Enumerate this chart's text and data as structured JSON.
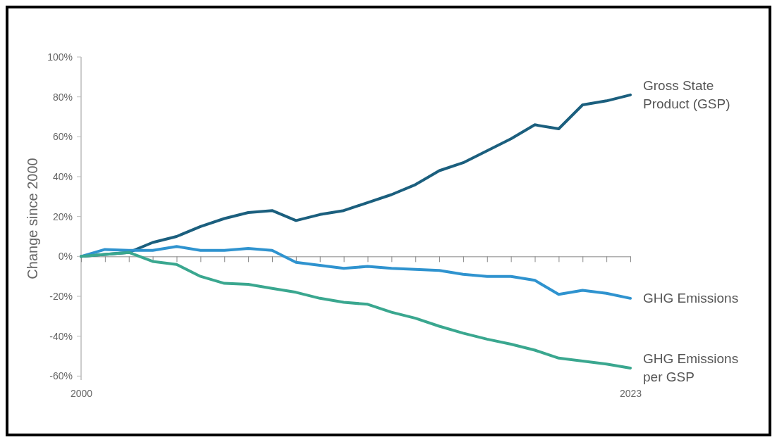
{
  "chart_data": {
    "type": "line",
    "ylabel": "Change since 2000",
    "x": [
      2000,
      2001,
      2002,
      2003,
      2004,
      2005,
      2006,
      2007,
      2008,
      2009,
      2010,
      2011,
      2012,
      2013,
      2014,
      2015,
      2016,
      2017,
      2018,
      2019,
      2020,
      2021,
      2022,
      2023
    ],
    "xlim": [
      2000,
      2023
    ],
    "xticks": [
      {
        "value": 2000,
        "label": "2000"
      },
      {
        "value": 2001,
        "label": null
      },
      {
        "value": 2002,
        "label": null
      },
      {
        "value": 2003,
        "label": null
      },
      {
        "value": 2004,
        "label": null
      },
      {
        "value": 2005,
        "label": null
      },
      {
        "value": 2006,
        "label": null
      },
      {
        "value": 2007,
        "label": null
      },
      {
        "value": 2008,
        "label": null
      },
      {
        "value": 2009,
        "label": null
      },
      {
        "value": 2010,
        "label": null
      },
      {
        "value": 2011,
        "label": null
      },
      {
        "value": 2012,
        "label": null
      },
      {
        "value": 2013,
        "label": null
      },
      {
        "value": 2014,
        "label": null
      },
      {
        "value": 2015,
        "label": null
      },
      {
        "value": 2016,
        "label": null
      },
      {
        "value": 2017,
        "label": null
      },
      {
        "value": 2018,
        "label": null
      },
      {
        "value": 2019,
        "label": null
      },
      {
        "value": 2020,
        "label": null
      },
      {
        "value": 2021,
        "label": null
      },
      {
        "value": 2022,
        "label": null
      },
      {
        "value": 2023,
        "label": "2023"
      }
    ],
    "ylim": [
      -62,
      100
    ],
    "yticks": [
      {
        "value": -60,
        "label": "-60%"
      },
      {
        "value": -40,
        "label": "-40%"
      },
      {
        "value": -20,
        "label": "-20%"
      },
      {
        "value": 0,
        "label": "0%"
      },
      {
        "value": 20,
        "label": "20%"
      },
      {
        "value": 40,
        "label": "40%"
      },
      {
        "value": 60,
        "label": "60%"
      },
      {
        "value": 80,
        "label": "80%"
      },
      {
        "value": 100,
        "label": "100%"
      }
    ],
    "marker": "none",
    "line_style": "solid",
    "series": [
      {
        "name": "Gross State Product (GSP)",
        "color": "#1b5f7e",
        "values": [
          0,
          1,
          2,
          7,
          10,
          15,
          19,
          22,
          23,
          18,
          21,
          23,
          27,
          31,
          36,
          43,
          47,
          53,
          59,
          66,
          64,
          76,
          78,
          81
        ]
      },
      {
        "name": "GHG Emissions",
        "color": "#2f93cf",
        "values": [
          0,
          3.5,
          3,
          3,
          5,
          3,
          3,
          4,
          3,
          -3,
          -4.5,
          -6,
          -5,
          -6,
          -6.5,
          -7,
          -9,
          -10,
          -10,
          -12,
          -19,
          -17,
          -18.5,
          -21
        ]
      },
      {
        "name": "GHG Emissions per GSP",
        "color": "#3aa78f",
        "values": [
          0,
          1,
          2,
          -2.5,
          -4,
          -10,
          -13.5,
          -14,
          -16,
          -18,
          -21,
          -23,
          -24,
          -28,
          -31,
          -35,
          -38.5,
          -41.5,
          -44,
          -47,
          -51,
          -52.5,
          -54,
          -56
        ]
      }
    ]
  }
}
